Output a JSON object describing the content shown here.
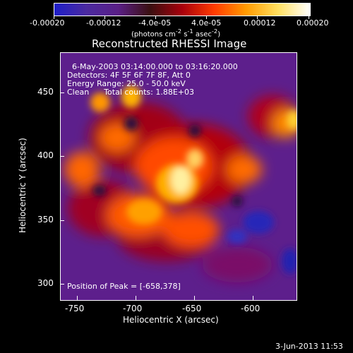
{
  "colorbar": {
    "tick_labels": [
      "-0.00020",
      "-0.00012",
      "-4.0e-05",
      "4.0e-05",
      "0.00012",
      "0.00020"
    ],
    "units_html": "(photons cm<sup>-2</sup> s<sup>-1</sup> asec<sup>-2</sup>)",
    "colors": [
      "#1e1ec8",
      "#4b2aa0",
      "#5a1f86",
      "#3a0f10",
      "#a8000b",
      "#ff3b00",
      "#ff9b00",
      "#ffe060",
      "#ffffff"
    ]
  },
  "image": {
    "title": "Reconstructed RHESSI Image",
    "info_lines": [
      "6-May-2003 03:14:00.000 to 03:16:20.000",
      "Detectors: 4F 5F 6F 7F 8F, Att 0",
      "Energy Range: 25.0 - 50.0 keV",
      "Clean      Total counts: 1.88E+03"
    ],
    "peak_label": "Position of Peak = [-658,378]",
    "x_axis": {
      "label": "Heliocentric X (arcsec)",
      "ticks": [
        "-750",
        "-700",
        "-650",
        "-600"
      ]
    },
    "y_axis": {
      "label": "Heliocentric Y (arcsec)",
      "ticks": [
        "300",
        "350",
        "400",
        "450"
      ]
    }
  },
  "footer": {
    "date": "3-Jun-2013 11:53"
  }
}
